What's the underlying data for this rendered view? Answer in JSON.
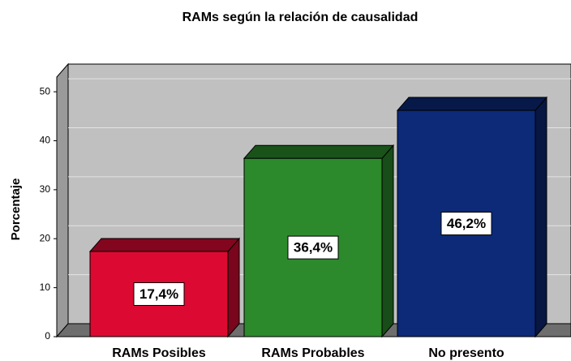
{
  "chart_data": {
    "type": "bar3d",
    "title": "RAMs según la relación de causalidad",
    "y_label": "Porcentaje",
    "categories": [
      "RAMs Posibles",
      "RAMs Probables",
      "No presento"
    ],
    "values": [
      17.4,
      36.4,
      46.2
    ],
    "value_labels": [
      "17,4%",
      "36,4%",
      "46,2%"
    ],
    "colors": [
      "#dc0a32",
      "#2c8a2c",
      "#0c2a78"
    ],
    "ylim": [
      0,
      53
    ],
    "yticks": [
      0,
      10,
      20,
      30,
      40,
      50
    ],
    "grid": true
  }
}
